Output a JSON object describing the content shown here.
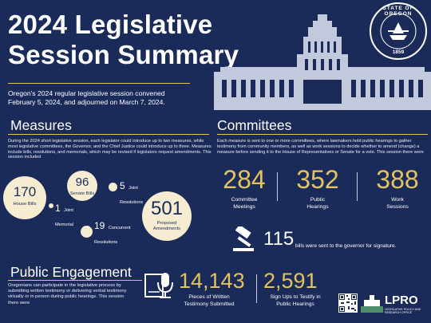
{
  "title_line1": "2024 Legislative",
  "title_line2": "Session Summary",
  "intro": "Oregon's 2024 regular legislative session convened February 5, 2024, and adjourned on March 7, 2024.",
  "seal": {
    "top": "STATE OF OREGON",
    "year": "1859"
  },
  "measures": {
    "heading": "Measures",
    "paragraph": "During the 2024 short legislative session, each legislator could introduce up to two measures, while most legislative committees, the Governor, and the Chief Justice could introduce up to three. Measures include bills, resolutions, and memorials, which may be revised if legislators request amendments. This session included",
    "house_bills": {
      "value": "170",
      "label": "House Bills"
    },
    "senate_bills": {
      "value": "96",
      "label": "Senate Bills"
    },
    "joint_memorial": {
      "value": "1",
      "label": "Joint Memorial"
    },
    "joint_resolutions": {
      "value": "5",
      "label": "Joint Resolutions"
    },
    "concurrent_resolutions": {
      "value": "19",
      "label": "Concurrent Resolutions"
    },
    "proposed_amendments": {
      "value": "501",
      "label": "Proposed Amendments"
    }
  },
  "committees": {
    "heading": "Committees",
    "paragraph": "Each measure is sent to one or more committees, where lawmakers hold public hearings to gather testimony from community members, as well as work sessions to decide whether to amend (change) a measure before sending it to the House of Representatives or Senate for a vote. This session there were",
    "meetings": {
      "value": "284",
      "label": "Committee Meetings"
    },
    "hearings": {
      "value": "352",
      "label": "Public Hearings"
    },
    "work_sessions": {
      "value": "388",
      "label": "Work Sessions"
    },
    "bills_sent": {
      "value": "115",
      "label": "bills were sent to the governor for signature."
    }
  },
  "engagement": {
    "heading": "Public Engagement",
    "paragraph": "Oregonians can participate in the legislative process by submitting written testimony or delivering verbal testimony virtually or in person during public hearings. This session there were",
    "testimony": {
      "value": "14,143",
      "label": "Pieces of Written Testimony Submitted"
    },
    "signups": {
      "value": "2,591",
      "label": "Sign Ups to Testify in Public Hearings"
    }
  },
  "logo": {
    "name": "LPRO",
    "subtitle": "LEGISLATIVE POLICY AND RESEARCH OFFICE"
  },
  "colors": {
    "background": "#1b2b59",
    "accent": "#e3c35e",
    "bubble": "#f5ecd2",
    "capitol": "#c3c9dc"
  },
  "icons": [
    "capitol-building-icon",
    "state-seal-icon",
    "gavel-icon",
    "microphone-document-icon",
    "qr-code-icon",
    "lpro-logo-icon"
  ]
}
